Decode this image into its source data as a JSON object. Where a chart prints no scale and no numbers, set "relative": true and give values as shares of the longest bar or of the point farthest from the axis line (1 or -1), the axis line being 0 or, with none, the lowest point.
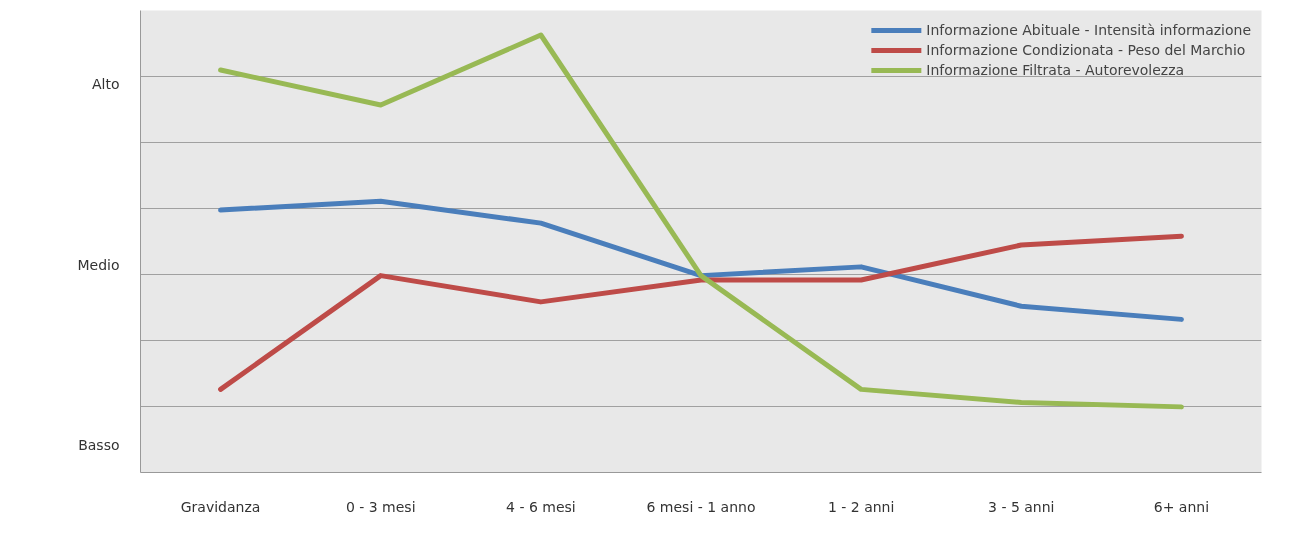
{
  "chart_data": {
    "type": "line",
    "relative": true,
    "categories": [
      "Gravidanza",
      "0 - 3 mesi",
      "4 - 6 mesi",
      "6 mesi - 1 anno",
      "1 - 2 anni",
      "3 - 5 anni",
      "6+ anni"
    ],
    "annotations": [
      "Alto",
      "Medio",
      "Basso"
    ],
    "grid": "y",
    "legend": "top right",
    "marker": "none",
    "line_style": "solid",
    "series": [
      {
        "name": "Informazione Abituale - Intensità informazione",
        "color": "#4a7ebb",
        "values": [
          0.6,
          0.62,
          0.57,
          0.45,
          0.47,
          0.38,
          0.35
        ]
      },
      {
        "name": "Informazione Condizionata - Peso del Marchio",
        "color": "#be4b48",
        "values": [
          0.19,
          0.45,
          0.39,
          0.44,
          0.44,
          0.52,
          0.54
        ]
      },
      {
        "name": "Informazione Filtrata - Autorevolezza",
        "color": "#98b954",
        "values": [
          0.92,
          0.84,
          1,
          0.45,
          0.19,
          0.16,
          0.15
        ]
      }
    ]
  }
}
